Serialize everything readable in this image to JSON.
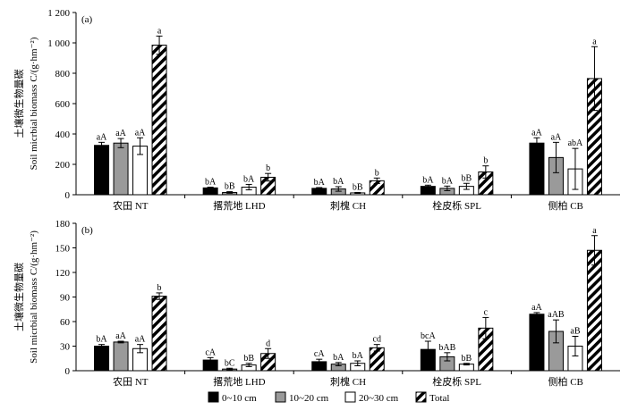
{
  "chart_data": [
    {
      "type": "bar",
      "panel_label": "(a)",
      "ylabel_cn": "土壤微生物量碳",
      "ylabel_en": "Soil micrbial biomass C/(g·hm⁻²)",
      "ylim": [
        0,
        1200
      ],
      "yticks": [
        0,
        200,
        400,
        600,
        800,
        1000,
        1200
      ],
      "ytick_labels": [
        "0",
        "200",
        "400",
        "600",
        "800",
        "1 000",
        "1 200"
      ],
      "categories": [
        "农田 NT",
        "撂荒地 LHD",
        "刺槐 CH",
        "栓皮栎 SPL",
        "侧柏 CB"
      ],
      "series": [
        {
          "name": "0~10 cm",
          "values": [
            325,
            45,
            42,
            55,
            340
          ],
          "errors": [
            20,
            5,
            5,
            8,
            35
          ],
          "letters": [
            "aA",
            "bA",
            "bA",
            "bA",
            "aA"
          ]
        },
        {
          "name": "10~20 cm",
          "values": [
            340,
            15,
            38,
            42,
            245
          ],
          "errors": [
            30,
            5,
            15,
            15,
            100
          ],
          "letters": [
            "aA",
            "bB",
            "bA",
            "bA",
            "aA"
          ]
        },
        {
          "name": "20~30 cm",
          "values": [
            320,
            50,
            12,
            55,
            170
          ],
          "errors": [
            55,
            18,
            3,
            20,
            135
          ],
          "letters": [
            "aA",
            "bA",
            "bB",
            "bB",
            "abA"
          ]
        },
        {
          "name": "Total",
          "values": [
            985,
            115,
            92,
            150,
            765
          ],
          "errors": [
            60,
            25,
            18,
            40,
            210
          ],
          "letters": [
            "a",
            "b",
            "b",
            "b",
            "a"
          ]
        }
      ]
    },
    {
      "type": "bar",
      "panel_label": "(b)",
      "ylabel_cn": "土壤微生物量碳",
      "ylabel_en": "Soil micrbial biomass C/(g·hm⁻²)",
      "ylim": [
        0,
        180
      ],
      "yticks": [
        0,
        30,
        60,
        90,
        120,
        150,
        180
      ],
      "ytick_labels": [
        "0",
        "30",
        "60",
        "90",
        "120",
        "150",
        "180"
      ],
      "categories": [
        "农田 NT",
        "撂荒地 LHD",
        "刺槐 CH",
        "栓皮栎 SPL",
        "侧柏 CB"
      ],
      "series": [
        {
          "name": "0~10 cm",
          "values": [
            30,
            13,
            11,
            26,
            69
          ],
          "errors": [
            2,
            3,
            3,
            10,
            2
          ],
          "letters": [
            "bA",
            "cA",
            "cA",
            "bcA",
            "aA"
          ]
        },
        {
          "name": "10~20 cm",
          "values": [
            35,
            2,
            8,
            17,
            48
          ],
          "errors": [
            1,
            1,
            2,
            5,
            14
          ],
          "letters": [
            "aA",
            "bC",
            "bA",
            "bAB",
            "aAB"
          ]
        },
        {
          "name": "20~30 cm",
          "values": [
            27,
            7,
            9,
            8,
            30
          ],
          "errors": [
            5,
            2,
            3,
            1,
            12
          ],
          "letters": [
            "aA",
            "bB",
            "bA",
            "bB",
            "aB"
          ]
        },
        {
          "name": "Total",
          "values": [
            91,
            21,
            28,
            52,
            147
          ],
          "errors": [
            4,
            6,
            4,
            13,
            18
          ],
          "letters": [
            "b",
            "d",
            "cd",
            "c",
            "a"
          ]
        }
      ]
    }
  ],
  "legend": {
    "items": [
      {
        "label": "0~10 cm",
        "style": "black"
      },
      {
        "label": "10~20 cm",
        "style": "gray"
      },
      {
        "label": "20~30 cm",
        "style": "white"
      },
      {
        "label": "Total",
        "style": "hatch"
      }
    ]
  },
  "colors": {
    "black": "#000000",
    "gray": "#9a9a9a",
    "white": "#ffffff",
    "axis": "#000000"
  }
}
